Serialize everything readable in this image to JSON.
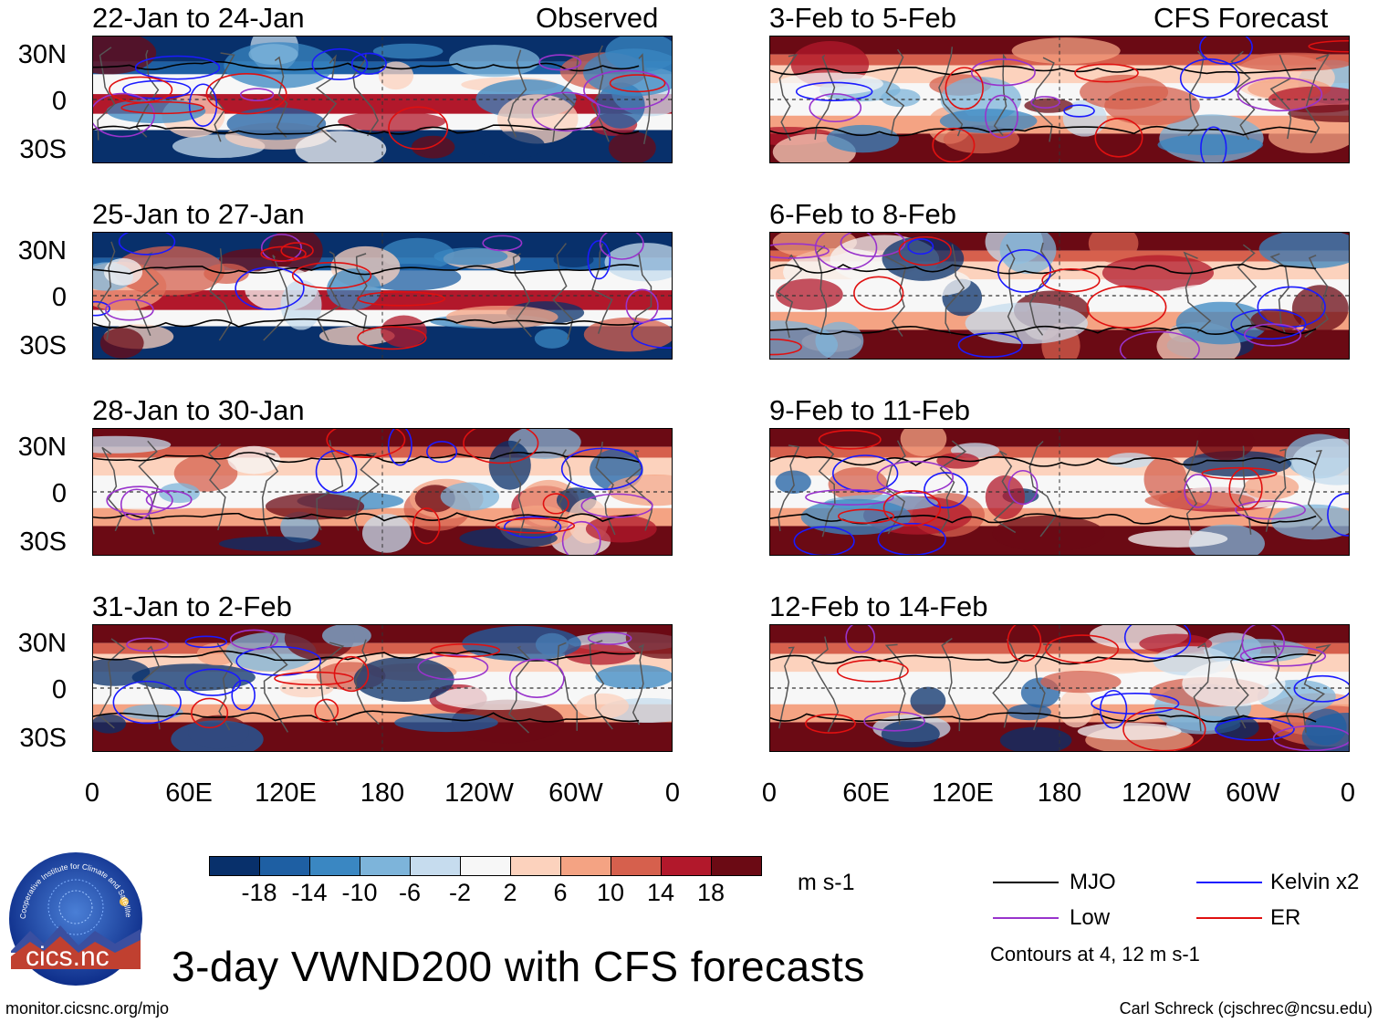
{
  "colors": {
    "scale": [
      "#08306b",
      "#1e5fa3",
      "#3a87c2",
      "#7db4da",
      "#c6dcee",
      "#f7f7f7",
      "#fcd2bd",
      "#f4a383",
      "#d6604d",
      "#b2182b",
      "#6b0a14"
    ],
    "mjo": "#000000",
    "kelvin": "#1a1aff",
    "low": "#9933cc",
    "er": "#e01010",
    "coast": "#555555"
  },
  "chart_data": [
    {
      "type": "heatmap",
      "title": "22-Jan to 24-Jan",
      "label": "Observed",
      "variable": "VWND200",
      "seed": 3
    },
    {
      "type": "heatmap",
      "title": "25-Jan to 27-Jan",
      "label": "",
      "variable": "VWND200",
      "seed": 7
    },
    {
      "type": "heatmap",
      "title": "28-Jan to 30-Jan",
      "label": "",
      "variable": "VWND200",
      "seed": 11
    },
    {
      "type": "heatmap",
      "title": "31-Jan to 2-Feb",
      "label": "",
      "variable": "VWND200",
      "seed": 17
    },
    {
      "type": "heatmap",
      "title": "3-Feb to 5-Feb",
      "label": "CFS Forecast",
      "variable": "VWND200",
      "seed": 23
    },
    {
      "type": "heatmap",
      "title": "6-Feb to 8-Feb",
      "label": "",
      "variable": "VWND200",
      "seed": 29
    },
    {
      "type": "heatmap",
      "title": "9-Feb to 11-Feb",
      "label": "",
      "variable": "VWND200",
      "seed": 31
    },
    {
      "type": "heatmap",
      "title": "12-Feb to 14-Feb",
      "label": "",
      "variable": "VWND200",
      "seed": 37
    }
  ],
  "axes": {
    "ylabels": [
      "30N",
      "0",
      "30S"
    ],
    "xlabels": [
      "0",
      "60E",
      "120E",
      "180",
      "120W",
      "60W",
      "0"
    ]
  },
  "colorbar": {
    "ticks": [
      "-18",
      "-14",
      "-10",
      "-6",
      "-2",
      "2",
      "6",
      "10",
      "14",
      "18"
    ],
    "unit": "m s-1"
  },
  "legend": {
    "mjo": "MJO",
    "kelvin": "Kelvin x2",
    "low": "Low",
    "er": "ER",
    "note": "Contours at 4, 12 m s-1"
  },
  "title": "3-day VWND200 with CFS forecasts",
  "logo_text": "cics.nc",
  "logo_ring": "Cooperative Institute for Climate and Satellites",
  "footer": {
    "left": "monitor.cicsnc.org/mjo",
    "right": "Carl Schreck (cjschrec@ncsu.edu)"
  }
}
